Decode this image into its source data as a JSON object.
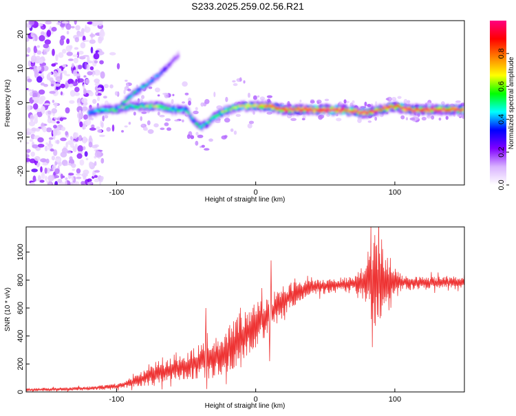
{
  "title": "S233.2025.259.02.56.R21",
  "chart_data": [
    {
      "type": "heatmap",
      "title": "S233.2025.259.02.56.R21",
      "xlabel": "Height of straight line (km)",
      "ylabel": "Frequency (Hz)",
      "xlim": [
        -165,
        150
      ],
      "ylim": [
        -24,
        24
      ],
      "xticks": [
        -100,
        0,
        100
      ],
      "xtick_labels": [
        "-100",
        "0",
        "100"
      ],
      "yticks": [
        -20,
        -10,
        0,
        10,
        20
      ],
      "ytick_labels": [
        "-20",
        "-10",
        "0",
        "10",
        "20"
      ],
      "colorbar": {
        "label": "Normalized spectral amplitude",
        "range": [
          0,
          1
        ],
        "ticks": [
          0.0,
          0.2,
          0.4,
          0.6,
          0.8
        ],
        "tick_labels": [
          "0.0",
          "0.2",
          "0.4",
          "0.6",
          "0.8"
        ],
        "colormap": [
          "#ffffff",
          "#d9b3ff",
          "#8000ff",
          "#0000ff",
          "#00ffff",
          "#00ff00",
          "#ffff00",
          "#ff8000",
          "#ff0000",
          "#ff0080"
        ]
      },
      "ridge": {
        "x": [
          -120,
          -110,
          -100,
          -90,
          -80,
          -70,
          -60,
          -50,
          -45,
          -40,
          -35,
          -30,
          -25,
          -20,
          -10,
          0,
          10,
          20,
          40,
          60,
          80,
          90,
          100,
          110,
          130,
          150
        ],
        "freq": [
          -3,
          -2,
          -2,
          -1,
          -1,
          -1,
          -2,
          -2,
          -5,
          -7,
          -6,
          -4,
          -3,
          -2,
          -1,
          -1,
          -1,
          -2,
          -2,
          -2,
          -3,
          -2,
          -1,
          -2,
          -2,
          -2
        ],
        "amplitude": [
          0.3,
          0.4,
          0.45,
          0.4,
          0.45,
          0.5,
          0.4,
          0.35,
          0.35,
          0.4,
          0.4,
          0.45,
          0.5,
          0.5,
          0.55,
          0.6,
          0.8,
          0.85,
          0.85,
          0.9,
          0.8,
          0.75,
          0.8,
          0.85,
          0.8,
          0.8
        ]
      },
      "upper_branch": {
        "x": [
          -100,
          -90,
          -80,
          -70,
          -60,
          -55
        ],
        "freq": [
          -2,
          2,
          5,
          8,
          12,
          14
        ],
        "amplitude": [
          0.4,
          0.4,
          0.35,
          0.3,
          0.15,
          0.1
        ]
      },
      "noise_region_x": [
        -165,
        -110
      ]
    },
    {
      "type": "line",
      "xlabel": "Height of straight line (km)",
      "ylabel": "SNR (10 * v/v)",
      "xlim": [
        -165,
        150
      ],
      "ylim": [
        0,
        1180
      ],
      "xticks": [
        -100,
        0,
        100
      ],
      "xtick_labels": [
        "-100",
        "0",
        "100"
      ],
      "yticks": [
        0,
        200,
        400,
        600,
        800,
        1000
      ],
      "ytick_labels": [
        "0",
        "200",
        "400",
        "600",
        "800",
        "1000"
      ],
      "color": "#ee3333",
      "trend": {
        "x": [
          -165,
          -140,
          -120,
          -100,
          -85,
          -75,
          -60,
          -50,
          -40,
          -30,
          -20,
          -10,
          0,
          10,
          20,
          30,
          40,
          60,
          75,
          85,
          95,
          110,
          130,
          150
        ],
        "y": [
          15,
          20,
          25,
          40,
          80,
          120,
          160,
          180,
          220,
          250,
          300,
          400,
          480,
          560,
          650,
          720,
          750,
          765,
          780,
          800,
          790,
          780,
          780,
          790
        ]
      },
      "amplitude_envelope": {
        "x": [
          -165,
          -120,
          -100,
          -85,
          -75,
          -60,
          -50,
          -40,
          -30,
          -20,
          -10,
          0,
          10,
          20,
          40,
          70,
          80,
          85,
          90,
          95,
          105,
          150
        ],
        "y": [
          8,
          10,
          15,
          30,
          50,
          60,
          70,
          90,
          110,
          120,
          130,
          110,
          100,
          80,
          40,
          40,
          120,
          250,
          220,
          150,
          40,
          30
        ]
      },
      "extremes": [
        {
          "x": 84,
          "y": 1170
        },
        {
          "x": 84,
          "y": 320
        },
        {
          "x": 11,
          "y": 940
        },
        {
          "x": -36,
          "y": 600
        },
        {
          "x": 10,
          "y": 220
        }
      ]
    }
  ]
}
